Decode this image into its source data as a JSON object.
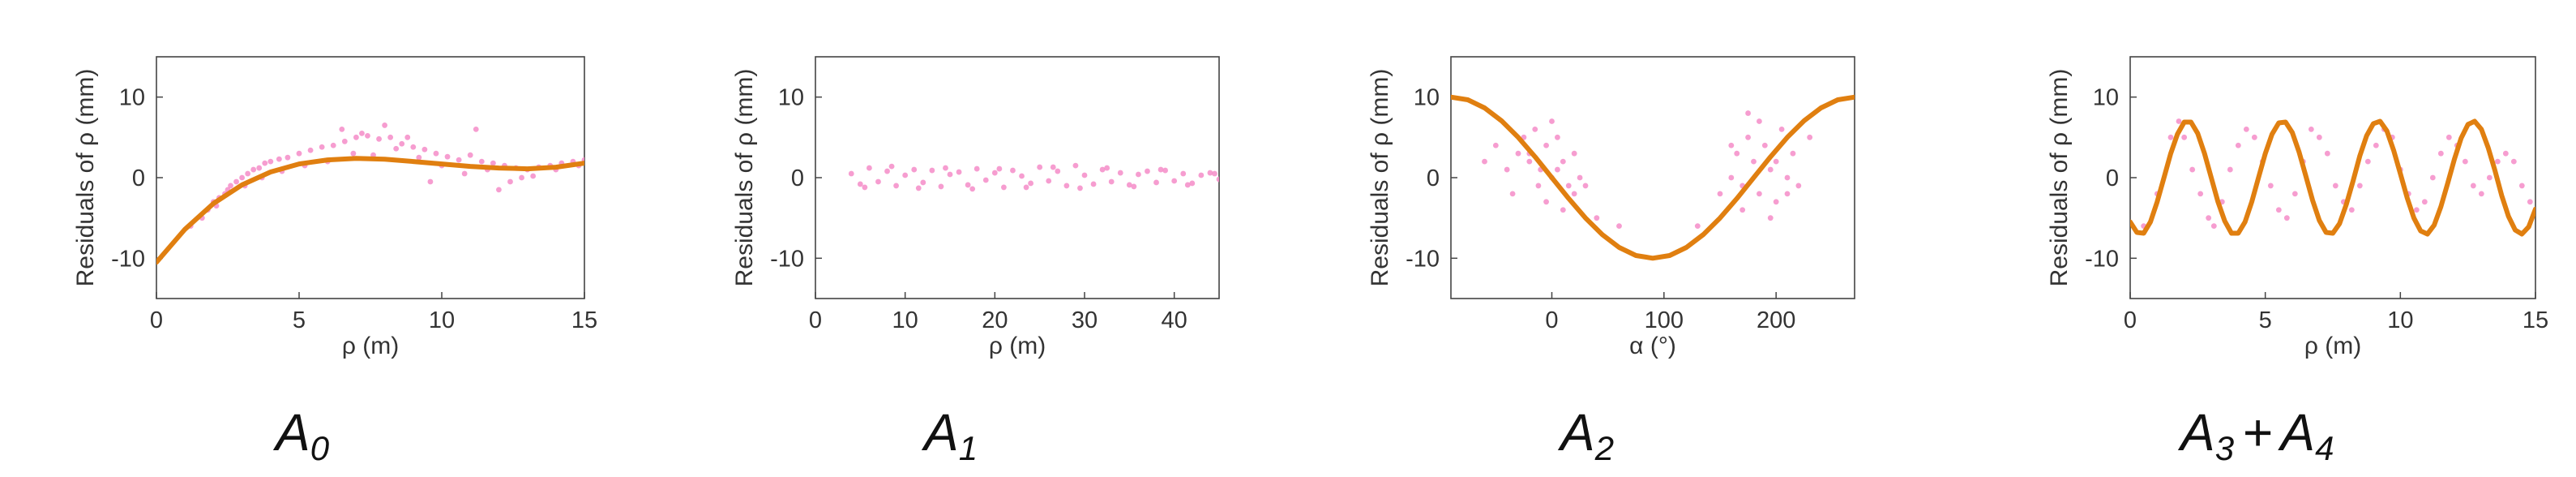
{
  "colors": {
    "points": "#f48cc8",
    "curve": "#e07f10",
    "axis": "#444444"
  },
  "chart_data": [
    {
      "type": "scatter",
      "caption": {
        "base": "A",
        "sub": "0"
      },
      "xlabel": "ρ (m)",
      "ylabel": "Residuals of ρ (mm)",
      "xlim": [
        0,
        15
      ],
      "ylim": [
        -15,
        15
      ],
      "xticks": [
        0,
        5,
        10,
        15
      ],
      "yticks": [
        10,
        0,
        -10
      ],
      "series": [
        {
          "kind": "points",
          "x": [
            1.2,
            1.6,
            1.8,
            2.0,
            2.2,
            2.4,
            2.6,
            2.8,
            3.0,
            3.2,
            3.4,
            3.6,
            3.8,
            4.0,
            4.3,
            4.6,
            5.0,
            5.4,
            5.8,
            6.2,
            6.6,
            7.0,
            7.4,
            7.8,
            8.2,
            8.6,
            9.0,
            9.4,
            9.8,
            10.2,
            10.6,
            11.0,
            11.4,
            11.8,
            12.2,
            12.6,
            13.0,
            13.4,
            13.8,
            14.2,
            14.6,
            15.0,
            2.1,
            2.5,
            3.1,
            3.7,
            4.4,
            5.2,
            6.0,
            6.9,
            7.6,
            8.4,
            9.2,
            10.0,
            10.8,
            11.6,
            12.4,
            13.2,
            14.0,
            14.8,
            6.5,
            7.2,
            8.0,
            8.8,
            9.6,
            11.2,
            12.0,
            12.8
          ],
          "y": [
            -6,
            -5,
            -4,
            -3,
            -2.5,
            -2,
            -1,
            -0.5,
            0,
            0.5,
            1,
            1.2,
            1.8,
            2,
            2.3,
            2.5,
            3,
            3.4,
            3.8,
            4,
            4.5,
            5,
            5.2,
            4.8,
            5,
            4.2,
            3.8,
            3.5,
            3,
            2.6,
            2.2,
            2.8,
            2,
            1.8,
            1.5,
            1.2,
            1,
            1.3,
            1.5,
            1.8,
            2,
            2.2,
            -3.5,
            -1.5,
            -1,
            0,
            0.8,
            1.5,
            2,
            3,
            2.8,
            3.6,
            2.5,
            1.5,
            0.5,
            1,
            -0.5,
            0.2,
            1,
            1.5,
            6,
            5.5,
            6.5,
            5,
            -0.5,
            6,
            -1.5,
            0
          ]
        },
        {
          "kind": "curve",
          "function": "cubic trend",
          "x": [
            0,
            1,
            2,
            3,
            4,
            5,
            6,
            7,
            8,
            9,
            10,
            11,
            12,
            13,
            14,
            15
          ],
          "y": [
            -10.5,
            -6.4,
            -3.2,
            -0.9,
            0.7,
            1.7,
            2.2,
            2.4,
            2.3,
            2.0,
            1.7,
            1.4,
            1.2,
            1.1,
            1.3,
            1.8
          ]
        }
      ]
    },
    {
      "type": "scatter",
      "caption": {
        "base": "A",
        "sub": "1"
      },
      "xlabel": "ρ (m)",
      "ylabel": "Residuals of ρ (mm)",
      "xlim": [
        0,
        45
      ],
      "ylim": [
        -15,
        15
      ],
      "xticks": [
        0,
        10,
        20,
        30,
        40
      ],
      "yticks": [
        10,
        0,
        -10
      ],
      "series": [
        {
          "kind": "points",
          "x": [
            4,
            5,
            6,
            7,
            8,
            9,
            10,
            11,
            12,
            13,
            14,
            15,
            16,
            17,
            18,
            19,
            20,
            21,
            22,
            23,
            24,
            25,
            26,
            27,
            28,
            29,
            30,
            31,
            32,
            33,
            34,
            35,
            36,
            37,
            38,
            39,
            40,
            41,
            42,
            43,
            44,
            45,
            5.5,
            8.5,
            11.5,
            14.5,
            17.5,
            20.5,
            23.5,
            26.5,
            29.5,
            32.5,
            35.5,
            38.5,
            41.5,
            44.5
          ],
          "y": [
            0.5,
            -0.8,
            1.2,
            -0.5,
            0.8,
            -1,
            0.3,
            1,
            -0.6,
            0.9,
            -1.1,
            0.4,
            0.7,
            -0.9,
            1.1,
            -0.3,
            0.6,
            -1.2,
            0.9,
            0.2,
            -0.7,
            1.3,
            -0.4,
            0.8,
            -1,
            1.5,
            0.3,
            -0.8,
            1,
            -0.5,
            0.6,
            -0.9,
            0.4,
            0.8,
            -0.6,
            0.9,
            -0.4,
            0.5,
            -0.7,
            0.3,
            0.6,
            -0.2,
            -1.2,
            1.4,
            -1.3,
            1.2,
            -1.4,
            1.1,
            -1.2,
            1.3,
            -1.3,
            1.2,
            -1.1,
            1.0,
            -0.9,
            0.5
          ]
        }
      ]
    },
    {
      "type": "scatter",
      "caption": {
        "base": "A",
        "sub": "2"
      },
      "xlabel": "α (°)",
      "ylabel": "Residuals of ρ (mm)",
      "xlim": [
        -90,
        270
      ],
      "ylim": [
        -15,
        15
      ],
      "xticks": [
        0,
        100,
        200
      ],
      "yticks": [
        10,
        0,
        -10
      ],
      "series": [
        {
          "kind": "points",
          "x": [
            -60,
            -50,
            -40,
            -30,
            -25,
            -20,
            -15,
            -10,
            -5,
            0,
            5,
            10,
            15,
            20,
            25,
            30,
            -35,
            -5,
            10,
            0,
            -20,
            20,
            5,
            -12,
            40,
            60,
            130,
            150,
            160,
            165,
            170,
            175,
            180,
            185,
            190,
            195,
            200,
            205,
            210,
            215,
            220,
            170,
            185,
            200,
            160,
            195,
            175,
            210,
            230
          ],
          "y": [
            2,
            4,
            1,
            3,
            5,
            2,
            6,
            1,
            4,
            0,
            5,
            2,
            -1,
            3,
            0,
            -1,
            -2,
            -3,
            -4,
            7,
            3,
            -2,
            1,
            -1,
            -5,
            -6,
            -6,
            -2,
            0,
            3,
            -1,
            5,
            2,
            -2,
            4,
            1,
            -3,
            6,
            0,
            3,
            -1,
            -4,
            7,
            2,
            4,
            -5,
            8,
            -2,
            5
          ]
        },
        {
          "kind": "curve",
          "function": "10·cos(α)",
          "x": [
            -90,
            -75,
            -60,
            -45,
            -30,
            -15,
            0,
            15,
            30,
            45,
            60,
            75,
            90,
            105,
            120,
            135,
            150,
            165,
            180,
            195,
            210,
            225,
            240,
            255,
            270
          ],
          "y": [
            10,
            9.66,
            8.66,
            7.07,
            5.0,
            2.59,
            0,
            -2.59,
            -5.0,
            -7.07,
            -8.66,
            -9.66,
            -10,
            -9.66,
            -8.66,
            -7.07,
            -5.0,
            -2.59,
            0,
            2.59,
            5.0,
            7.07,
            8.66,
            9.66,
            10
          ]
        }
      ]
    },
    {
      "type": "scatter",
      "caption": {
        "base": "A",
        "sub": "3",
        "plus": "+",
        "base2": "A",
        "sub2": "4"
      },
      "xlabel": "ρ (m)",
      "ylabel": "Residuals of ρ (mm)",
      "xlim": [
        0,
        15
      ],
      "ylim": [
        -15,
        15
      ],
      "xticks": [
        0,
        5,
        10,
        15
      ],
      "yticks": [
        10,
        0,
        -10
      ],
      "series": [
        {
          "kind": "points",
          "x": [
            0.5,
            1.0,
            1.5,
            1.8,
            2.0,
            2.3,
            2.6,
            2.9,
            3.1,
            3.4,
            3.7,
            4.0,
            4.3,
            4.6,
            4.9,
            5.2,
            5.5,
            5.8,
            6.1,
            6.4,
            6.7,
            7.0,
            7.3,
            7.6,
            7.9,
            8.2,
            8.5,
            8.8,
            9.1,
            9.4,
            9.7,
            10.0,
            10.3,
            10.6,
            10.9,
            11.2,
            11.5,
            11.8,
            12.1,
            12.4,
            12.7,
            13.0,
            13.3,
            13.6,
            13.9,
            14.2,
            14.5,
            14.8
          ],
          "y": [
            -6,
            -2,
            5,
            7,
            5,
            1,
            -2,
            -5,
            -6,
            -3,
            1,
            4,
            6,
            5,
            2,
            -1,
            -4,
            -5,
            -2,
            2,
            6,
            5,
            3,
            -1,
            -3,
            -4,
            -1,
            2,
            4,
            6,
            5,
            1,
            -2,
            -4,
            -3,
            0,
            3,
            5,
            4,
            2,
            -1,
            -2,
            0,
            2,
            3,
            2,
            -1,
            -3
          ]
        },
        {
          "kind": "curve",
          "function": "7·sin(2πρ/3.1 − 0.3)",
          "x": [
            0,
            0.25,
            0.5,
            0.75,
            1.0,
            1.25,
            1.5,
            1.75,
            2.0,
            2.25,
            2.5,
            2.75,
            3.0,
            3.25,
            3.5,
            3.75,
            4.0,
            4.25,
            4.5,
            4.75,
            5.0,
            5.25,
            5.5,
            5.75,
            6.0,
            6.25,
            6.5,
            6.75,
            7.0,
            7.25,
            7.5,
            7.75,
            8.0,
            8.25,
            8.5,
            8.75,
            9.0,
            9.25,
            9.5,
            9.75,
            10.0,
            10.25,
            10.5,
            10.75,
            11.0,
            11.25,
            11.5,
            11.75,
            12.0,
            12.25,
            12.5,
            12.75,
            13.0,
            13.25,
            13.5,
            13.75,
            14.0,
            14.25,
            14.5,
            14.75,
            15.0
          ],
          "y": [
            -5.5,
            -6.8,
            -6.9,
            -5.5,
            -3.0,
            0.0,
            3.0,
            5.4,
            6.9,
            6.9,
            5.5,
            3.0,
            0.0,
            -3.0,
            -5.4,
            -6.9,
            -6.9,
            -5.5,
            -3.0,
            0.0,
            3.0,
            5.4,
            6.8,
            6.9,
            5.6,
            3.2,
            0.2,
            -2.8,
            -5.3,
            -6.8,
            -6.9,
            -5.7,
            -3.3,
            -0.4,
            2.7,
            5.2,
            6.7,
            7.0,
            5.8,
            3.4,
            0.5,
            -2.5,
            -5.0,
            -6.6,
            -7.0,
            -5.9,
            -3.6,
            -0.7,
            2.3,
            4.9,
            6.6,
            7.0,
            6.0,
            3.7,
            0.9,
            -2.2,
            -4.8,
            -6.5,
            -7.0,
            -6.1,
            -3.9
          ]
        }
      ]
    }
  ]
}
